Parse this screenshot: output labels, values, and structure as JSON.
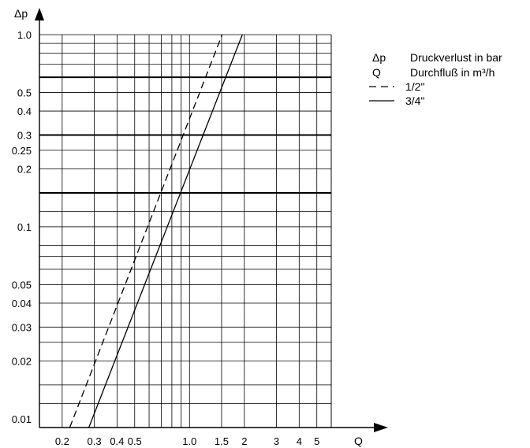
{
  "chart_data": {
    "type": "line",
    "title": "",
    "xlabel": "Q",
    "ylabel": "Δp",
    "x_scale": "log",
    "y_scale": "log",
    "xlim": [
      0.15,
      6.0
    ],
    "ylim": [
      0.009,
      1.0
    ],
    "grid": true,
    "x_ticks": [
      {
        "value": 0.2,
        "label": "0.2"
      },
      {
        "value": 0.3,
        "label": "0.3"
      },
      {
        "value": 0.4,
        "label": "0.4"
      },
      {
        "value": 0.5,
        "label": "0.5"
      },
      {
        "value": 1.0,
        "label": "1.0"
      },
      {
        "value": 1.5,
        "label": "1.5"
      },
      {
        "value": 2,
        "label": "2"
      },
      {
        "value": 3,
        "label": "3"
      },
      {
        "value": 4,
        "label": "4"
      },
      {
        "value": 5,
        "label": "5"
      }
    ],
    "y_ticks": [
      {
        "value": 0.01,
        "label": "0.01"
      },
      {
        "value": 0.02,
        "label": "0.02"
      },
      {
        "value": 0.03,
        "label": "0.03"
      },
      {
        "value": 0.04,
        "label": "0.04"
      },
      {
        "value": 0.05,
        "label": "0.05"
      },
      {
        "value": 0.1,
        "label": "0.1"
      },
      {
        "value": 0.2,
        "label": "0.2"
      },
      {
        "value": 0.25,
        "label": "0.25"
      },
      {
        "value": 0.3,
        "label": "0.3"
      },
      {
        "value": 0.4,
        "label": "0.4"
      },
      {
        "value": 0.5,
        "label": "0.5"
      },
      {
        "value": 1.0,
        "label": "1.0"
      }
    ],
    "x_gridlines": [
      0.2,
      0.3,
      0.4,
      0.5,
      0.6,
      0.7,
      0.8,
      0.9,
      1.0,
      1.5,
      2,
      3,
      4,
      5,
      6
    ],
    "y_gridlines": [
      0.012,
      0.015,
      0.02,
      0.025,
      0.03,
      0.04,
      0.05,
      0.06,
      0.07,
      0.08,
      0.1,
      0.12,
      0.2,
      0.25,
      0.3,
      0.4,
      0.5,
      0.6,
      0.7,
      0.8,
      0.9,
      1.0
    ],
    "reference_lines": [
      0.15,
      0.3,
      0.6
    ],
    "series": [
      {
        "name": "1/2\"",
        "style": "dashed",
        "points": [
          [
            0.22,
            0.009
          ],
          [
            1.51,
            1.0
          ]
        ]
      },
      {
        "name": "3/4\"",
        "style": "solid",
        "points": [
          [
            0.28,
            0.009
          ],
          [
            1.95,
            1.0
          ]
        ]
      }
    ],
    "legend": {
      "position": "top-right",
      "entries": [
        {
          "symbol": "Δp",
          "text": "Druckverlust in bar"
        },
        {
          "symbol": "Q",
          "text": "Durchfluß in m³/h"
        },
        {
          "symbol": "dashed-line",
          "text": "1/2\""
        },
        {
          "symbol": "solid-line",
          "text": "3/4\""
        }
      ]
    }
  }
}
